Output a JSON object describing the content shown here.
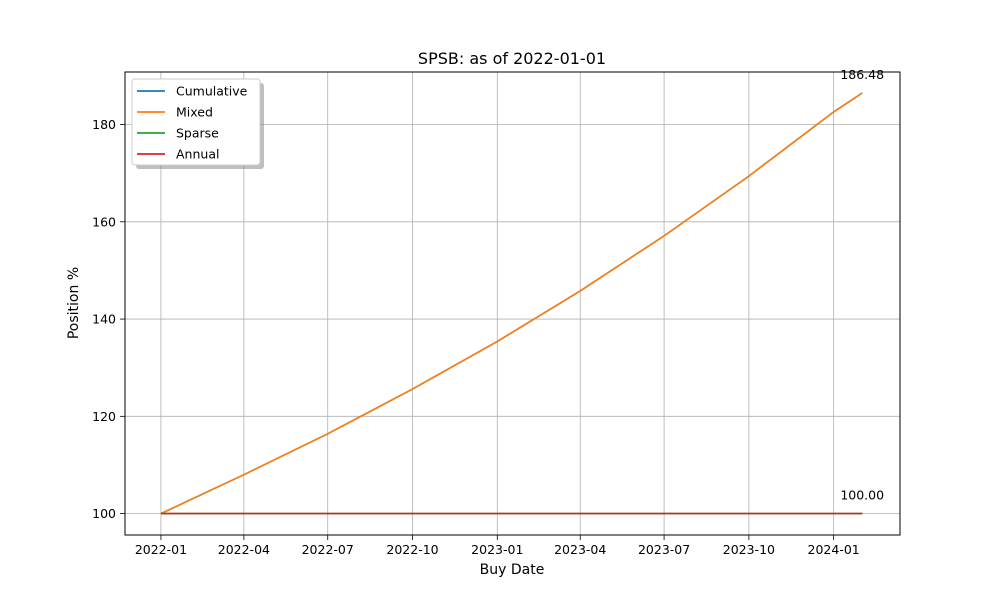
{
  "chart_data": {
    "type": "line",
    "title": "SPSB: as of 2022-01-01",
    "xlabel": "Buy Date",
    "ylabel": "Position %",
    "x_ticks": [
      "2022-01",
      "2022-04",
      "2022-07",
      "2022-10",
      "2023-01",
      "2023-04",
      "2023-07",
      "2023-10",
      "2024-01"
    ],
    "y_ticks": [
      100,
      120,
      140,
      160,
      180
    ],
    "xlim": [
      "2021-11-23",
      "2024-03-13"
    ],
    "ylim": [
      95.6,
      190.8
    ],
    "grid": true,
    "legend_position": "top-left",
    "series": [
      {
        "name": "Cumulative",
        "color": "#1f77b4",
        "x": [
          "2022-01-01",
          "2022-04-01",
          "2022-07-01",
          "2022-10-01",
          "2023-01-01",
          "2023-04-01",
          "2023-07-01",
          "2023-10-01",
          "2024-01-01",
          "2024-02-01"
        ],
        "y": [
          100.0,
          108.0,
          116.4,
          125.6,
          135.4,
          145.8,
          157.1,
          169.4,
          182.6,
          186.48
        ]
      },
      {
        "name": "Mixed",
        "color": "#ff7f0e",
        "x": [
          "2022-01-01",
          "2022-04-01",
          "2022-07-01",
          "2022-10-01",
          "2023-01-01",
          "2023-04-01",
          "2023-07-01",
          "2023-10-01",
          "2024-01-01",
          "2024-02-01"
        ],
        "y": [
          100.0,
          108.0,
          116.4,
          125.6,
          135.4,
          145.8,
          157.1,
          169.4,
          182.6,
          186.48
        ]
      },
      {
        "name": "Sparse",
        "color": "#2ca02c",
        "x": [
          "2022-01-01",
          "2024-02-01"
        ],
        "y": [
          100.0,
          100.0
        ]
      },
      {
        "name": "Annual",
        "color": "#d62728",
        "x": [
          "2022-01-01",
          "2024-02-01"
        ],
        "y": [
          100.0,
          100.0
        ]
      }
    ],
    "annotations": [
      {
        "text": "186.48",
        "x": "2024-02-01",
        "y": 186.48
      },
      {
        "text": "100.00",
        "x": "2024-02-01",
        "y": 100.0
      }
    ]
  }
}
